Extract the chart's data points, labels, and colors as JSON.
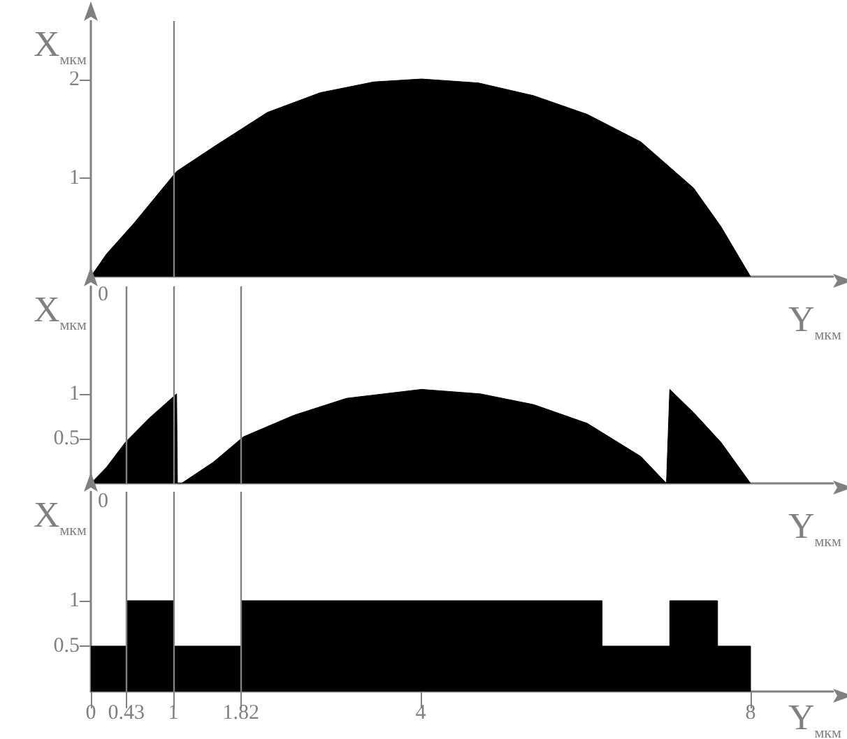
{
  "chart_data": [
    {
      "type": "area",
      "xlabel": "Y$_{мкм}$",
      "ylabel": "X$_{мкм}$",
      "xlim": [
        0,
        9
      ],
      "ylim": [
        0,
        2.6
      ],
      "yticks": [
        1,
        2
      ],
      "grid": false,
      "tick_labels": "y",
      "annotations": [
        "0"
      ],
      "x": [
        0,
        0.19,
        0.52,
        1.04,
        1.49,
        2.14,
        2.78,
        3.43,
        4.01,
        4.7,
        5.37,
        6.02,
        6.67,
        7.31,
        7.64,
        8
      ],
      "series": [
        {
          "color": "#000000",
          "values": [
            0,
            0.23,
            0.54,
            1.07,
            1.32,
            1.67,
            1.87,
            1.98,
            2.01,
            1.97,
            1.84,
            1.65,
            1.37,
            0.9,
            0.51,
            0
          ]
        }
      ],
      "ref_lines": [
        {
          "axis": "x",
          "value": 1,
          "color": "#808080"
        }
      ]
    },
    {
      "type": "area",
      "xlabel": "Y$_{мкм}$",
      "ylabel": "X$_{мкм}$",
      "xlim": [
        0,
        9
      ],
      "ylim": [
        0,
        2.2
      ],
      "yticks": [
        0.5,
        1
      ],
      "grid": false,
      "tick_labels": "y",
      "annotations": [
        "0"
      ],
      "x": [
        0,
        0.19,
        0.42,
        0.71,
        1.04,
        1.05,
        1.1,
        1.49,
        1.85,
        2.46,
        3.1,
        4.01,
        4.72,
        5.37,
        6.02,
        6.67,
        6.98,
        7.02,
        7.31,
        7.64,
        8
      ],
      "series": [
        {
          "color": "#000000",
          "values": [
            0,
            0.18,
            0.46,
            0.73,
            1.0,
            0,
            0,
            0.24,
            0.52,
            0.76,
            0.95,
            1.05,
            1.0,
            0.88,
            0.67,
            0.3,
            0,
            1.05,
            0.79,
            0.46,
            0
          ]
        }
      ],
      "ref_lines": [
        {
          "axis": "x",
          "value": 0.43,
          "color": "#808080"
        },
        {
          "axis": "x",
          "value": 1,
          "color": "#808080"
        },
        {
          "axis": "x",
          "value": 1.82,
          "color": "#808080"
        }
      ]
    },
    {
      "type": "area",
      "xlabel": "Y$_{мкм}$",
      "ylabel": "X$_{мкм}$",
      "xlim": [
        0,
        9
      ],
      "ylim": [
        0,
        2.2
      ],
      "xticks": [
        0,
        0.43,
        1,
        1.82,
        4,
        8
      ],
      "yticks": [
        0.5,
        1
      ],
      "grid": false,
      "x": [
        0,
        0.43,
        0.43,
        1,
        1,
        1.82,
        1.82,
        6.2,
        6.2,
        7.02,
        7.02,
        7.6,
        7.6,
        8,
        8
      ],
      "series": [
        {
          "color": "#000000",
          "values": [
            0.5,
            0.5,
            1,
            1,
            0.5,
            0.5,
            1,
            1,
            0.5,
            0.5,
            1,
            1,
            0.5,
            0.5,
            0
          ]
        }
      ],
      "ref_lines": [
        {
          "axis": "x",
          "value": 0.43,
          "color": "#808080"
        },
        {
          "axis": "x",
          "value": 1,
          "color": "#808080"
        },
        {
          "axis": "x",
          "value": 1.82,
          "color": "#808080"
        }
      ]
    }
  ]
}
